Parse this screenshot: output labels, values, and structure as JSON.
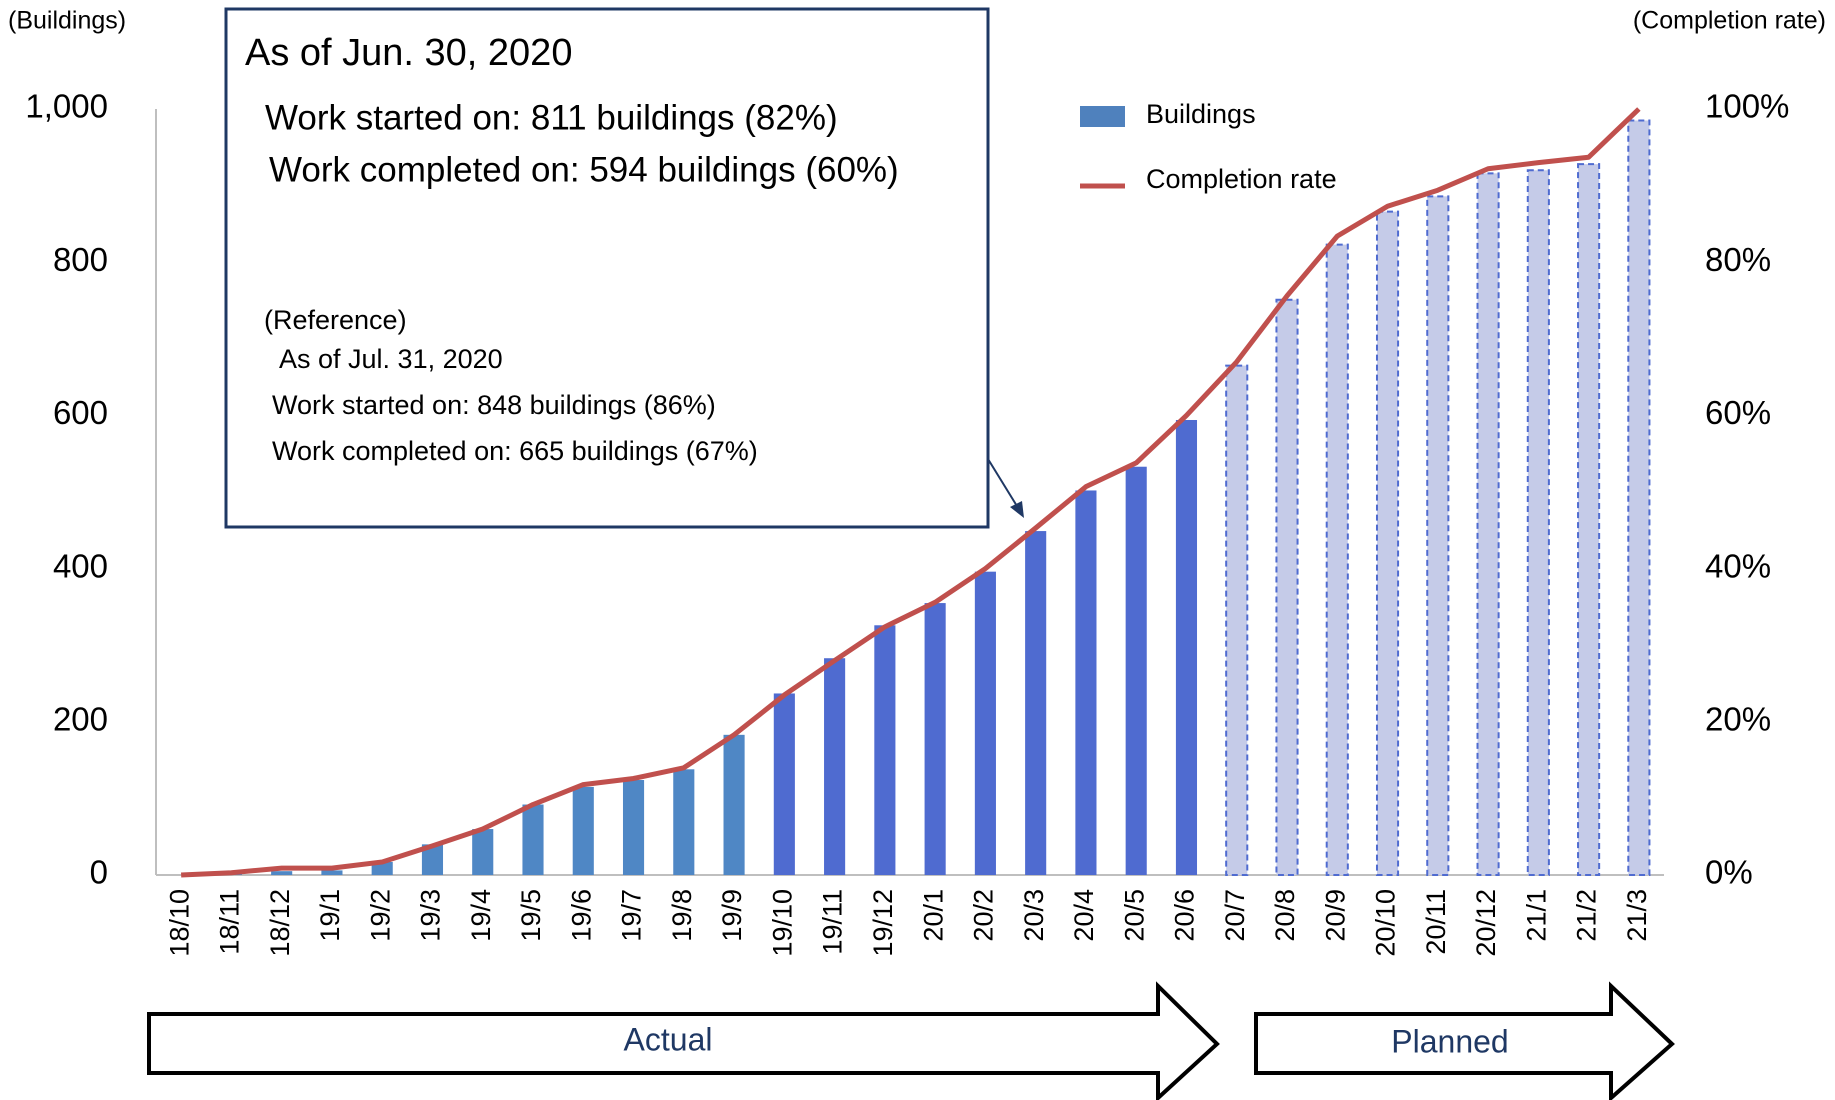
{
  "chart_data": {
    "type": "bar_line",
    "y_axis_label": "(Buildings)",
    "y2_axis_label": "(Completion rate)",
    "categories": [
      "18/10",
      "18/11",
      "18/12",
      "19/1",
      "19/2",
      "19/3",
      "19/4",
      "19/5",
      "19/6",
      "19/7",
      "19/8",
      "19/9",
      "19/10",
      "19/11",
      "19/12",
      "20/1",
      "20/2",
      "20/3",
      "20/4",
      "20/5",
      "20/6",
      "20/7",
      "20/8",
      "20/9",
      "20/10",
      "20/11",
      "20/12",
      "21/1",
      "21/2",
      "21/3"
    ],
    "series": [
      {
        "name": "Buildings",
        "color": "#4f81bd",
        "values": [
          0,
          2,
          5,
          6,
          17,
          40,
          60,
          92,
          115,
          124,
          138,
          183,
          237,
          283,
          326,
          355,
          396,
          449,
          502,
          533,
          594,
          665,
          751,
          823,
          866,
          886,
          916,
          920,
          928,
          985
        ],
        "bar_colors": [
          "#4f87c5",
          "#4f87c5",
          "#4f87c5",
          "#4f87c5",
          "#4f87c5",
          "#4f87c5",
          "#4f87c5",
          "#4f87c5",
          "#4f87c5",
          "#4f87c5",
          "#4f87c5",
          "#4f87c5",
          "#4f6bd0",
          "#4f6bd0",
          "#4f6bd0",
          "#4f6bd0",
          "#4f6bd0",
          "#4f6bd0",
          "#4f6bd0",
          "#4f6bd0",
          "#4f6bd0",
          "#c5cbe8",
          "#c5cbe8",
          "#c5cbe8",
          "#c5cbe8",
          "#c5cbe8",
          "#c5cbe8",
          "#c5cbe8",
          "#c5cbe8",
          "#c5cbe8"
        ],
        "bar_edge_colors": [
          null,
          null,
          null,
          null,
          null,
          null,
          null,
          null,
          null,
          null,
          null,
          null,
          null,
          null,
          null,
          null,
          null,
          null,
          null,
          null,
          null,
          "#4f6bd0",
          "#4f6bd0",
          "#4f6bd0",
          "#4f6bd0",
          "#4f6bd0",
          "#4f6bd0",
          "#4f6bd0",
          "#4f6bd0",
          "#4f6bd0"
        ]
      },
      {
        "name": "Completion rate",
        "color": "#c0504d",
        "axis": "y2",
        "values": [
          0,
          0.3,
          0.9,
          0.9,
          1.7,
          3.8,
          6,
          9.2,
          11.8,
          12.6,
          14,
          18.3,
          23.5,
          28,
          32.4,
          35.6,
          40,
          45.3,
          50.7,
          53.8,
          60,
          67,
          75.6,
          83.4,
          87.3,
          89.4,
          92.2,
          93,
          93.7,
          100
        ]
      }
    ],
    "ylim": [
      0,
      1000
    ],
    "yticks": [
      0,
      200,
      400,
      600,
      800,
      {
        "value": 1000,
        "label": "1,000"
      }
    ],
    "y2lim": [
      0,
      100
    ],
    "y2ticks": [
      {
        "value": 0,
        "label": "0%"
      },
      {
        "value": 20,
        "label": "20%"
      },
      {
        "value": 40,
        "label": "40%"
      },
      {
        "value": 60,
        "label": "60%"
      },
      {
        "value": 80,
        "label": "80%"
      },
      {
        "value": 100,
        "label": "100%"
      }
    ],
    "annotation": {
      "title": "As of Jun. 30, 2020",
      "lines": [
        "Work started on: 811 buildings (82%)",
        "Work completed on: 594 buildings (60%)"
      ],
      "reference": [
        "(Reference)",
        "As of Jul. 31, 2020",
        "Work started on: 848 buildings (86%)",
        "Work completed on: 665 buildings (67%)"
      ]
    },
    "phases": [
      "Actual",
      "Planned"
    ]
  }
}
